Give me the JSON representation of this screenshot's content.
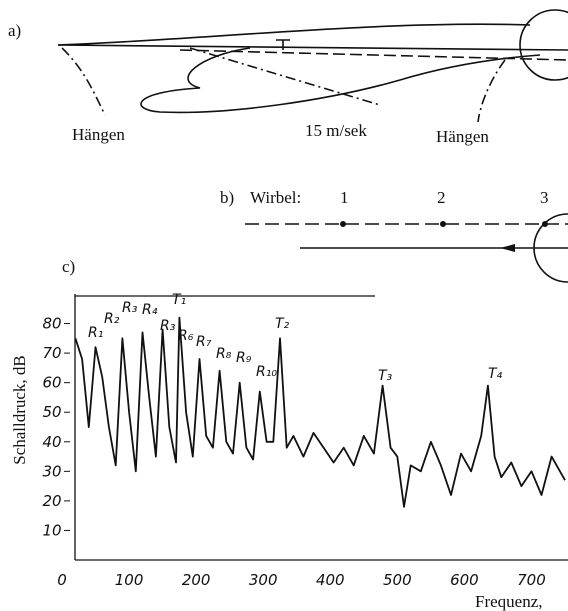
{
  "panel_a": {
    "label": "a)",
    "annotations": [
      "Hängen",
      "15 m/sek",
      "Hängen"
    ]
  },
  "panel_b": {
    "label": "b)",
    "title": "Wirbel:",
    "vortices": [
      "1",
      "2",
      "3"
    ]
  },
  "chart_data": {
    "type": "line",
    "label": "c)",
    "y_label": "Schalldruck, dB",
    "x_label": "Frequenz,",
    "xlim": [
      0,
      750
    ],
    "xticks": [
      0,
      100,
      200,
      300,
      400,
      500,
      600,
      700
    ],
    "ylim": [
      0,
      90
    ],
    "yticks": [
      10,
      20,
      30,
      40,
      50,
      60,
      70,
      80
    ],
    "peak_labels": [
      "R₁",
      "R₂",
      "R₃",
      "R₄",
      "R₃",
      "T₁",
      "R₆",
      "R₇",
      "R₈",
      "R₉",
      "R₁₀",
      "T₂",
      "T₃",
      "T₄"
    ],
    "series": [
      {
        "color": "#111111",
        "x": [
          20,
          30,
          40,
          50,
          60,
          70,
          80,
          90,
          100,
          110,
          120,
          130,
          140,
          150,
          160,
          170,
          175,
          185,
          195,
          205,
          215,
          225,
          235,
          245,
          255,
          265,
          275,
          285,
          295,
          305,
          315,
          325,
          335,
          345,
          360,
          375,
          390,
          405,
          420,
          435,
          450,
          465,
          478,
          490,
          500,
          510,
          520,
          535,
          550,
          565,
          580,
          595,
          610,
          625,
          635,
          645,
          655,
          670,
          685,
          700,
          715,
          730,
          750
        ],
        "values": [
          75,
          68,
          45,
          72,
          62,
          45,
          32,
          75,
          50,
          30,
          77,
          55,
          35,
          78,
          45,
          33,
          82,
          50,
          35,
          68,
          42,
          38,
          64,
          40,
          36,
          60,
          38,
          34,
          57,
          40,
          40,
          75,
          38,
          42,
          35,
          43,
          38,
          33,
          38,
          32,
          42,
          36,
          59,
          38,
          35,
          18,
          32,
          30,
          40,
          32,
          22,
          36,
          30,
          42,
          59,
          35,
          28,
          33,
          25,
          30,
          22,
          35,
          27
        ]
      }
    ]
  }
}
